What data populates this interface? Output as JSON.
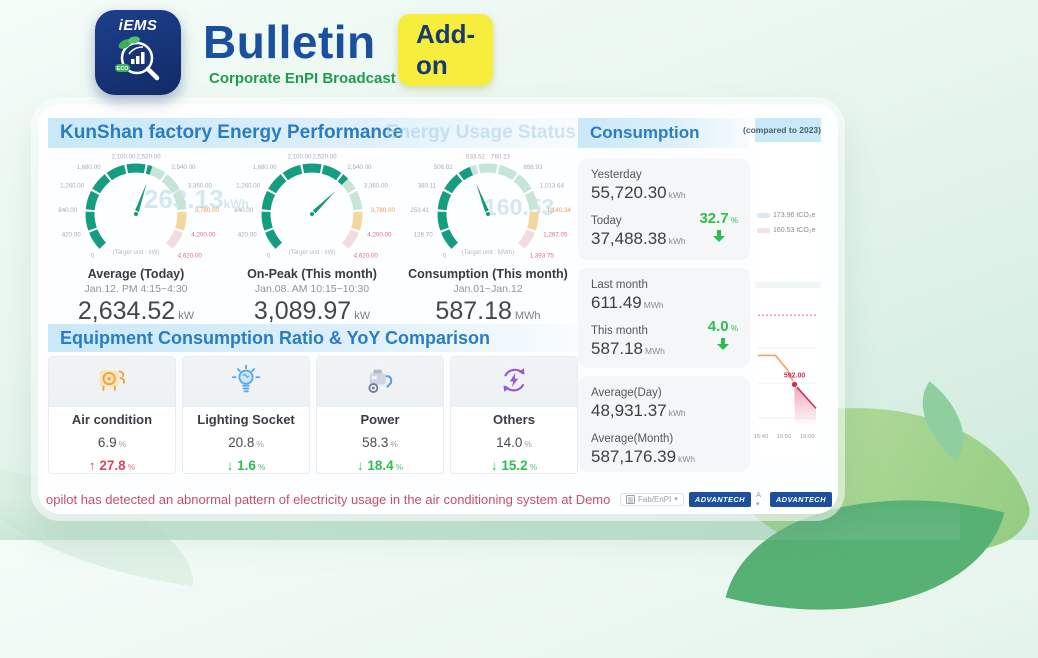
{
  "colors": {
    "accent_green": "#2ebd4e",
    "accent_red": "#d9485f",
    "brand_navy": "#1d4f9c",
    "gauge_green": "#169c80",
    "gauge_warn": "#f4d79c",
    "gauge_alarm": "#f3dcdf",
    "header_blue": "#2b7dc2",
    "badge_yellow": "#f6ed3c",
    "ticker_red": "#c84f66"
  },
  "header": {
    "logo_text": "iEMS",
    "logo_eco": "ECO",
    "title": "Bulletin",
    "badge": "Add-on",
    "subtitle": "Corporate EnPI Broadcast"
  },
  "main": {
    "section1_title": "KunShan factory Energy Performance",
    "ghost_title": "Energy Usage Status",
    "ghost_values": {
      "g1": "263.13",
      "g1_unit": "kWh",
      "g3": "160.53"
    },
    "section2_title": "Equipment Consumption Ratio & YoY Comparison",
    "ticker": "opilot has detected an abnormal pattern of electricity usage in the air conditioning system at Demo"
  },
  "equipment": [
    {
      "name": "Air condition",
      "icon": "ac-icon",
      "ratio": "6.9",
      "ratio_unit": "%",
      "yoy": "27.8",
      "yoy_unit": "%",
      "direction": "up"
    },
    {
      "name": "Lighting Socket",
      "icon": "bulb-icon",
      "ratio": "20.8",
      "ratio_unit": "%",
      "yoy": "1.6",
      "yoy_unit": "%",
      "direction": "down"
    },
    {
      "name": "Power",
      "icon": "motor-icon",
      "ratio": "58.3",
      "ratio_unit": "%",
      "yoy": "18.4",
      "yoy_unit": "%",
      "direction": "down"
    },
    {
      "name": "Others",
      "icon": "recycle-bolt-icon",
      "ratio": "14.0",
      "ratio_unit": "%",
      "yoy": "15.2",
      "yoy_unit": "%",
      "direction": "down"
    }
  ],
  "consumption": {
    "title": "Consumption",
    "cards": [
      {
        "rows": [
          {
            "label": "Yesterday",
            "value": "55,720.30",
            "unit": "kWh"
          },
          {
            "label": "Today",
            "value": "37,488.38",
            "unit": "kWh"
          }
        ],
        "pct": {
          "value": "32.7",
          "unit": "%",
          "direction": "down"
        }
      },
      {
        "rows": [
          {
            "label": "Last month",
            "value": "611.49",
            "unit": "MWh"
          },
          {
            "label": "This month",
            "value": "587.18",
            "unit": "MWh"
          }
        ],
        "pct": {
          "value": "4.0",
          "unit": "%",
          "direction": "down"
        }
      },
      {
        "rows": [
          {
            "label": "Average(Day)",
            "value": "48,931.37",
            "unit": "kWh"
          },
          {
            "label": "Average(Month)",
            "value": "587,176.39",
            "unit": "kWh"
          }
        ]
      }
    ]
  },
  "side_panel": {
    "title": "(compared to 2023)",
    "legend": [
      {
        "label": "173.96 tCO₂e",
        "swatch": "#dfe8ee"
      },
      {
        "label": "160.53 tCO₂e",
        "swatch": "#f0e2e6"
      }
    ]
  },
  "toolbar": {
    "dropdown_label": "Fab/EnPI",
    "lang": "A",
    "brand": "ADVANTECH",
    "brand2": "ADVANTECH"
  },
  "chart_data": {
    "gauges": [
      {
        "type": "gauge",
        "title": "Average (Today)",
        "period": "Jan.12. PM 4:15~4:30",
        "value": 2634.52,
        "display_value": "2,634.52",
        "unit": "kW",
        "min": 0,
        "max": 4620,
        "tick_step": 420,
        "ticks": [
          "0",
          "420.00",
          "840.00",
          "1,260.00",
          "1,680.00",
          "2,100.00",
          "2,520.00",
          "2,940.00",
          "3,360.00",
          "3,780.00",
          "4,200.00",
          "4,620.00"
        ],
        "target_note": "(Target unit : kW)"
      },
      {
        "type": "gauge",
        "title": "On-Peak (This month)",
        "period": "Jan.08. AM 10:15~10:30",
        "value": 3089.97,
        "display_value": "3,089.97",
        "unit": "kW",
        "min": 0,
        "max": 4620,
        "tick_step": 420,
        "ticks": [
          "0",
          "420.00",
          "840.00",
          "1,260.00",
          "1,680.00",
          "2,100.00",
          "2,520.00",
          "2,940.00",
          "3,360.00",
          "3,780.00",
          "4,200.00",
          "4,620.00"
        ],
        "target_note": "(Target unit : kW)"
      },
      {
        "type": "gauge",
        "title": "Consumption (This month)",
        "period": "Jan.01~Jan.12",
        "value": 587.18,
        "display_value": "587.18",
        "unit": "MWh",
        "min": 0,
        "max": 1393.75,
        "tick_step": 126.7,
        "ticks": [
          "0",
          "126.70",
          "253.41",
          "380.11",
          "506.82",
          "633.52",
          "760.23",
          "886.93",
          "1,013.64",
          "1,140.34",
          "1,267.05",
          "1,393.75"
        ],
        "target_note": "(Target unit : MWh)"
      }
    ],
    "trend": {
      "type": "line",
      "x_labels": [
        "15:40",
        "15:50",
        "16:00"
      ],
      "annotation": "592.00",
      "points": [
        [
          0,
          0.44
        ],
        [
          0.3,
          0.44
        ],
        [
          0.5,
          0.55
        ],
        [
          0.63,
          0.67
        ],
        [
          1,
          0.86
        ]
      ],
      "threshold_y": 0.12
    }
  }
}
